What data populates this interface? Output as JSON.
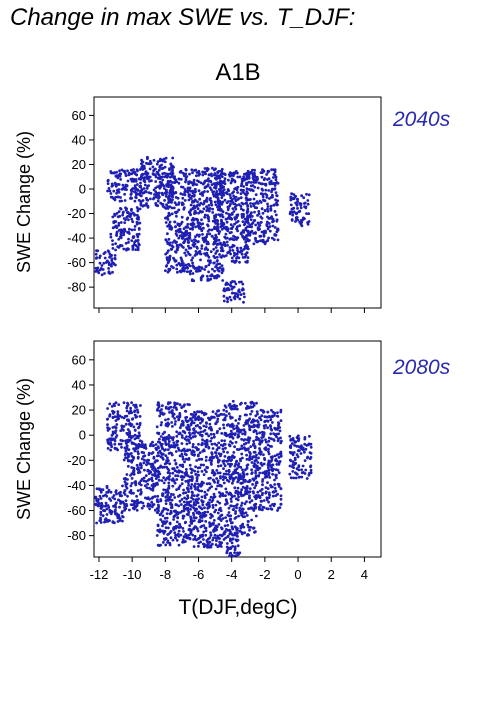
{
  "title": "Change in max SWE vs. T_DJF:",
  "scenario": "A1B",
  "colors": {
    "points": "#1f1fb4",
    "period_label": "#2a2ab0"
  },
  "chart_data": [
    {
      "type": "scatter",
      "panel": "top",
      "label": "2040s",
      "xlabel": "T(DJF,degC)",
      "ylabel": "SWE Change (%)",
      "xlim": [
        -12.3,
        5
      ],
      "ylim": [
        -97,
        75
      ],
      "xticks": [
        -12,
        -10,
        -8,
        -6,
        -4,
        -2,
        0,
        2,
        4
      ],
      "yticks": [
        -80,
        -60,
        -40,
        -20,
        0,
        20,
        40,
        60
      ],
      "grid": false,
      "legend": "none",
      "clusters": [
        {
          "x": [
            -11.5,
            -9.0
          ],
          "y": [
            -10,
            16
          ]
        },
        {
          "x": [
            -12.2,
            -11.0
          ],
          "y": [
            -70,
            -50
          ]
        },
        {
          "x": [
            -11.3,
            -9.5
          ],
          "y": [
            -50,
            -15
          ]
        },
        {
          "x": [
            -9.5,
            -7.5
          ],
          "y": [
            -15,
            27
          ]
        },
        {
          "x": [
            -8.0,
            -6.5
          ],
          "y": [
            -68,
            17
          ]
        },
        {
          "x": [
            -6.5,
            -4.5
          ],
          "y": [
            -75,
            17
          ]
        },
        {
          "x": [
            -5.0,
            -3.0
          ],
          "y": [
            -60,
            15
          ]
        },
        {
          "x": [
            -3.2,
            -1.2
          ],
          "y": [
            -45,
            16
          ]
        },
        {
          "x": [
            -4.5,
            -3.2
          ],
          "y": [
            -93,
            -75
          ]
        },
        {
          "x": [
            -0.5,
            0.7
          ],
          "y": [
            -30,
            -3
          ]
        }
      ]
    },
    {
      "type": "scatter",
      "panel": "bottom",
      "label": "2080s",
      "xlabel": "T(DJF,degC)",
      "ylabel": "SWE Change (%)",
      "xlim": [
        -12.3,
        5
      ],
      "ylim": [
        -97,
        75
      ],
      "xticks": [
        -12,
        -10,
        -8,
        -6,
        -4,
        -2,
        0,
        2,
        4
      ],
      "yticks": [
        -80,
        -60,
        -40,
        -20,
        0,
        20,
        40,
        60
      ],
      "grid": false,
      "legend": "none",
      "clusters": [
        {
          "x": [
            -11.5,
            -9.5
          ],
          "y": [
            -12,
            26
          ]
        },
        {
          "x": [
            -12.2,
            -10.5
          ],
          "y": [
            -70,
            -40
          ]
        },
        {
          "x": [
            -10.5,
            -8.5
          ],
          "y": [
            -60,
            -5
          ]
        },
        {
          "x": [
            -8.5,
            -6.5
          ],
          "y": [
            -88,
            26
          ]
        },
        {
          "x": [
            -6.5,
            -4.5
          ],
          "y": [
            -90,
            20
          ]
        },
        {
          "x": [
            -4.5,
            -3.5
          ],
          "y": [
            -97,
            -75
          ]
        },
        {
          "x": [
            -4.5,
            -2.5
          ],
          "y": [
            -80,
            27
          ]
        },
        {
          "x": [
            -2.5,
            -1.0
          ],
          "y": [
            -60,
            20
          ]
        },
        {
          "x": [
            -0.5,
            0.8
          ],
          "y": [
            -35,
            0
          ]
        }
      ]
    }
  ]
}
